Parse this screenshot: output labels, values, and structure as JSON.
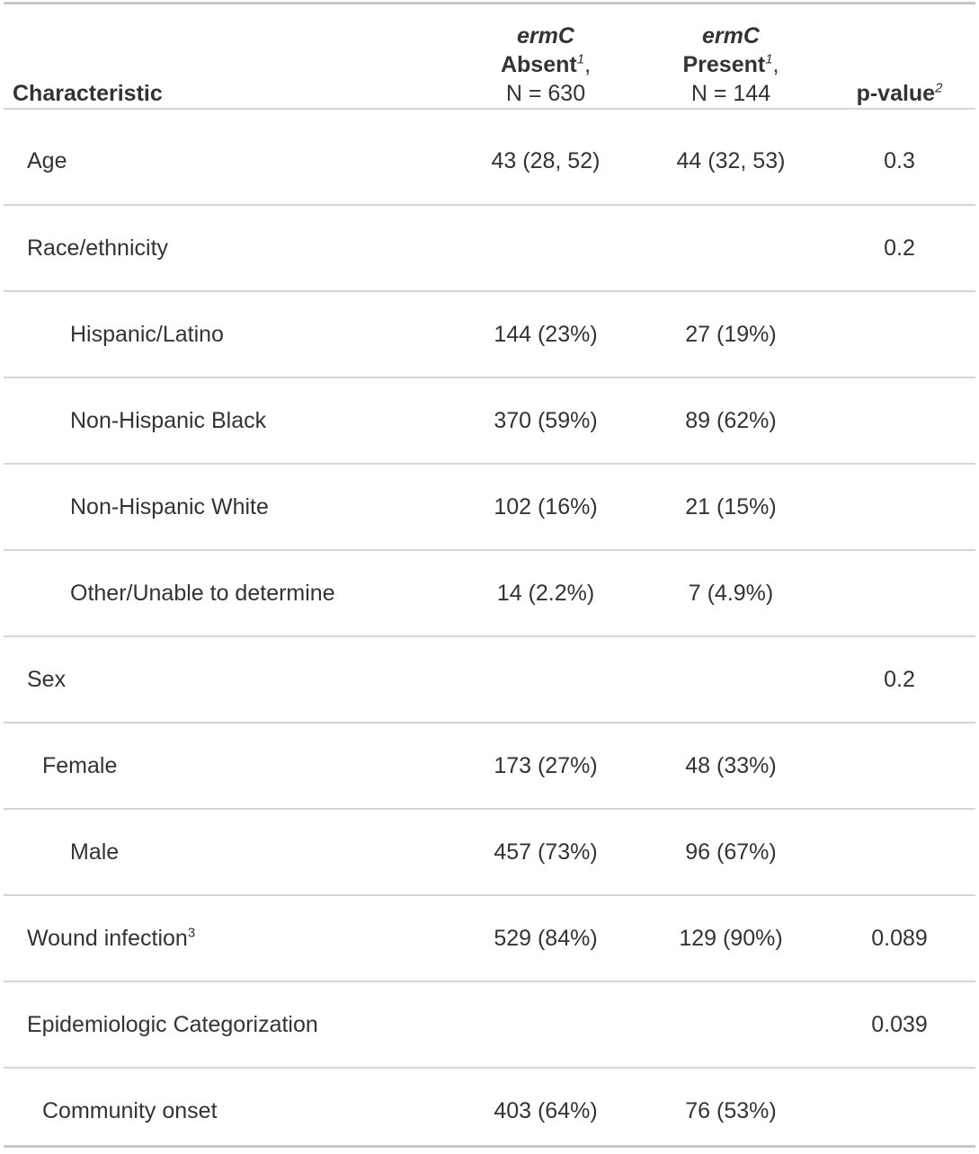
{
  "header": {
    "characteristic": "Characteristic",
    "absent": {
      "gene": "ermC",
      "label": "Absent",
      "sup": "1",
      "comma": ",",
      "n": "N = 630"
    },
    "present": {
      "gene": "ermC",
      "label": "Present",
      "sup": "1",
      "comma": ",",
      "n": "N = 144"
    },
    "pvalue": {
      "label": "p-value",
      "sup": "2"
    }
  },
  "rows": [
    {
      "label": "Age",
      "absent": "43 (28, 52)",
      "present": "44 (32, 53)",
      "p": "0.3"
    },
    {
      "label": "Race/ethnicity",
      "absent": "",
      "present": "",
      "p": "0.2"
    },
    {
      "label": "Hispanic/Latino",
      "absent": "144 (23%)",
      "present": "27 (19%)",
      "p": ""
    },
    {
      "label": "Non-Hispanic Black",
      "absent": "370 (59%)",
      "present": "89 (62%)",
      "p": ""
    },
    {
      "label": "Non-Hispanic White",
      "absent": "102 (16%)",
      "present": "21 (15%)",
      "p": ""
    },
    {
      "label": "Other/Unable to determine",
      "absent": "14 (2.2%)",
      "present": "7 (4.9%)",
      "p": ""
    },
    {
      "label": "Sex",
      "absent": "",
      "present": "",
      "p": "0.2"
    },
    {
      "label": "Female",
      "absent": "173 (27%)",
      "present": "48 (33%)",
      "p": ""
    },
    {
      "label": "Male",
      "absent": "457 (73%)",
      "present": "96 (67%)",
      "p": ""
    },
    {
      "label": "Wound infection",
      "label_sup": "3",
      "absent": "529 (84%)",
      "present": "129 (90%)",
      "p": "0.089"
    },
    {
      "label": "Epidemiologic Categorization",
      "absent": "",
      "present": "",
      "p": "0.039"
    },
    {
      "label": "Community onset",
      "absent": "403 (64%)",
      "present": "76 (53%)",
      "p": ""
    }
  ]
}
